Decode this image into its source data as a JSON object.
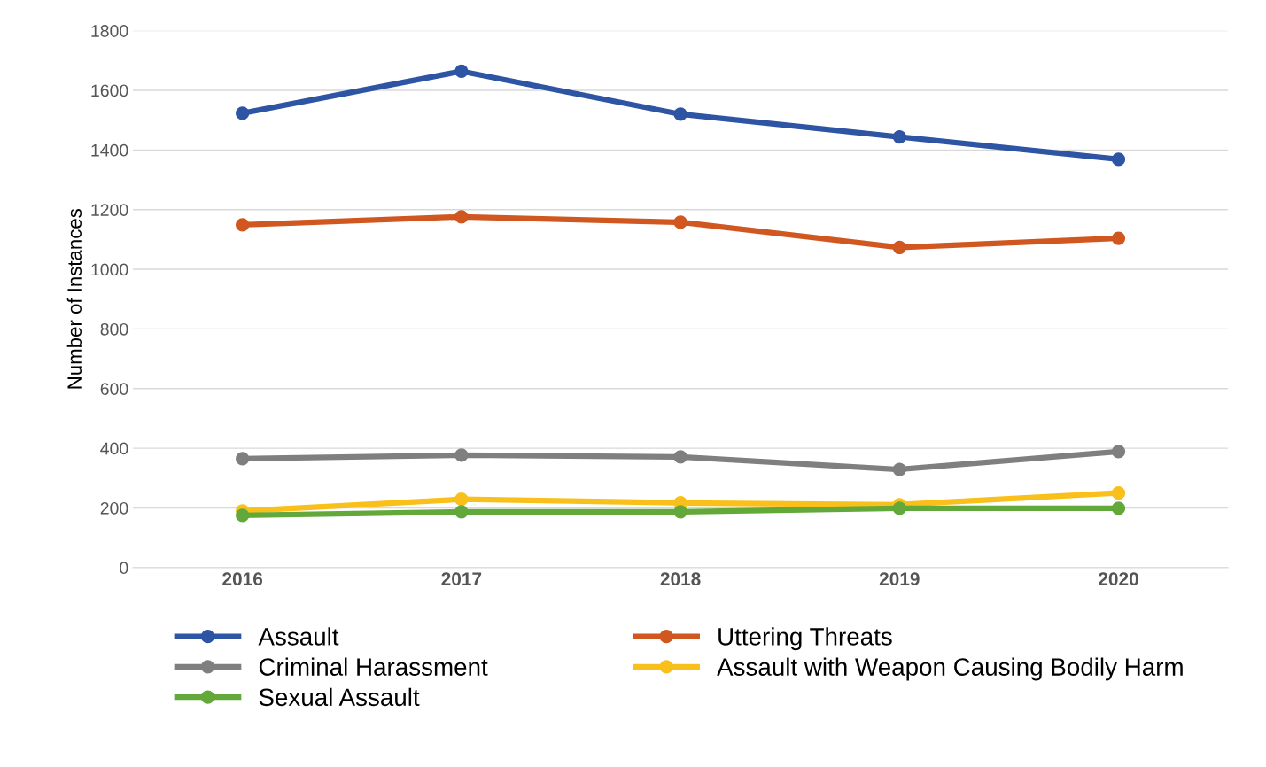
{
  "chart_data": {
    "type": "line",
    "ylabel": "Number of Instances",
    "categories": [
      "2016",
      "2017",
      "2018",
      "2019",
      "2020"
    ],
    "series": [
      {
        "name": "Assault",
        "color": "#2e54a4",
        "values": [
          1523,
          1664,
          1520,
          1444,
          1369
        ]
      },
      {
        "name": "Uttering Threats",
        "color": "#d0571f",
        "values": [
          1149,
          1176,
          1158,
          1073,
          1104
        ]
      },
      {
        "name": "Criminal Harassment",
        "color": "#7f7f7f",
        "values": [
          365,
          377,
          371,
          329,
          389
        ]
      },
      {
        "name": "Assault with Weapon Causing Bodily Harm",
        "color": "#f9c01b",
        "values": [
          190,
          229,
          217,
          211,
          250
        ]
      },
      {
        "name": "Sexual Assault",
        "color": "#62a83a",
        "values": [
          175,
          187,
          187,
          199,
          199
        ]
      }
    ],
    "ylim": [
      0,
      1800
    ],
    "yticks": [
      0,
      200,
      400,
      600,
      800,
      1000,
      1200,
      1400,
      1600,
      1800
    ],
    "grid": "y",
    "legend": "bottom",
    "marker": "circle",
    "line_style": "solid"
  }
}
